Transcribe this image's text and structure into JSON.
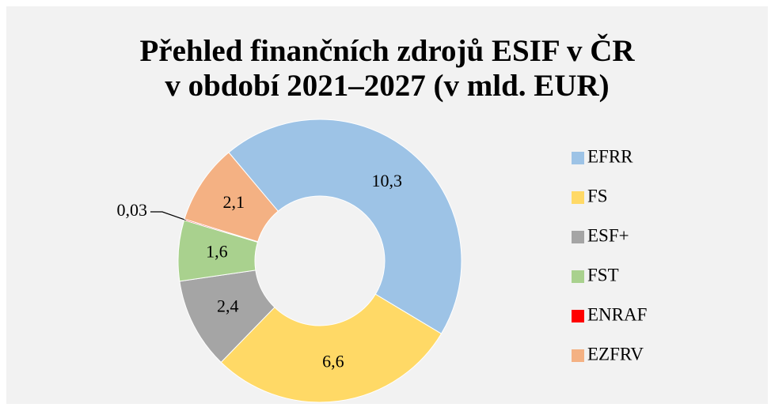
{
  "chart_data": {
    "type": "donut",
    "title": [
      "Přehled finančních zdrojů ESIF v ČR",
      "v období 2021–2027 (v mld. EUR)"
    ],
    "categories": [
      "EFRR",
      "FS",
      "ESF+",
      "FST",
      "ENRAF",
      "EZFRV"
    ],
    "values": [
      10.3,
      6.6,
      2.4,
      1.6,
      0.03,
      2.1
    ],
    "value_labels": [
      "10,3",
      "6,6",
      "2,4",
      "1,6",
      "0,03",
      "2,1"
    ],
    "colors": [
      "#9dc3e6",
      "#ffd966",
      "#a5a5a5",
      "#a9d18e",
      "#ff0000",
      "#f4b183"
    ],
    "legend": "right"
  }
}
